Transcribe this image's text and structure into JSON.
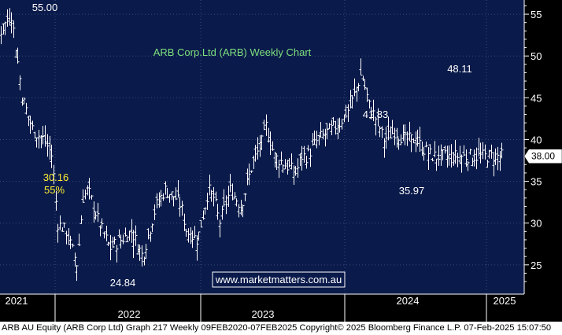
{
  "chart_data": {
    "type": "line",
    "title": "ARB Corp.Ltd (ARB) Weekly Chart",
    "x_labels": [
      "2021",
      "2022",
      "2023",
      "2024",
      "2025"
    ],
    "y_ticks": [
      25,
      30,
      35,
      40,
      45,
      50,
      55
    ],
    "ylim": [
      21.5,
      56.7
    ],
    "grid": true,
    "series": [
      {
        "x": [
          2020.1,
          2020.2,
          2020.3,
          2020.4,
          2020.5,
          2020.6,
          2020.7,
          2020.8,
          2020.9,
          2020.97,
          2021.02,
          2021.1,
          2021.2,
          2021.25,
          2021.3,
          2021.4,
          2021.5,
          2021.6,
          2021.7,
          2021.8,
          2021.92,
          2022.0,
          2022.1,
          2022.15,
          2022.2,
          2022.3,
          2022.4,
          2022.45,
          2022.5,
          2022.6,
          2022.7,
          2022.8,
          2022.9,
          2022.93,
          2023.0,
          2023.1,
          2023.2,
          2023.25,
          2023.3,
          2023.4,
          2023.5,
          2023.6,
          2023.7,
          2023.8,
          2023.87,
          2023.95,
          2024.0,
          2024.1,
          2024.2,
          2024.3,
          2024.35,
          2024.4,
          2024.45,
          2024.5,
          2024.6,
          2024.7,
          2024.8,
          2024.9,
          2025.0,
          2025.09
        ],
        "values": [
          54.5,
          48,
          47,
          52,
          53,
          55,
          45,
          41,
          40,
          38,
          30,
          29,
          25,
          33,
          34,
          30,
          27,
          28,
          29,
          26,
          32,
          34,
          33,
          32,
          29,
          28,
          34,
          33,
          30,
          34,
          32,
          37,
          40,
          41.8,
          38,
          37,
          36,
          38,
          38,
          40,
          41,
          42,
          44,
          48,
          44,
          42,
          40,
          41,
          40,
          40,
          39,
          38.5,
          38,
          38,
          38,
          38,
          38,
          38,
          38,
          38
        ]
      }
    ],
    "annotations": {
      "high_2021": "55.00",
      "low_2022": "24.84",
      "drop_value": "30.16",
      "drop_pct": "55%",
      "peak_2023": "41.83",
      "trough_2023": "35.97",
      "high_2024": "48.11",
      "last_price": "38.00"
    },
    "watermark": "www.marketmatters.com.au",
    "colors": {
      "background": "#0a1a4a",
      "grid": "#3a4a7a",
      "price": "#ffffff",
      "title": "#7ee07e",
      "drop_label": "#ffee33",
      "watermark_text": "#ffffff",
      "watermark_box": "#0a1a4a"
    }
  },
  "footer": "ARB AU Equity (ARB Corp Ltd) Graph 217  Weekly 09FEB2020-07FEB2025 Copyright© 2025 Bloomberg Finance L.P.  07-Feb-2025 15:07:50"
}
